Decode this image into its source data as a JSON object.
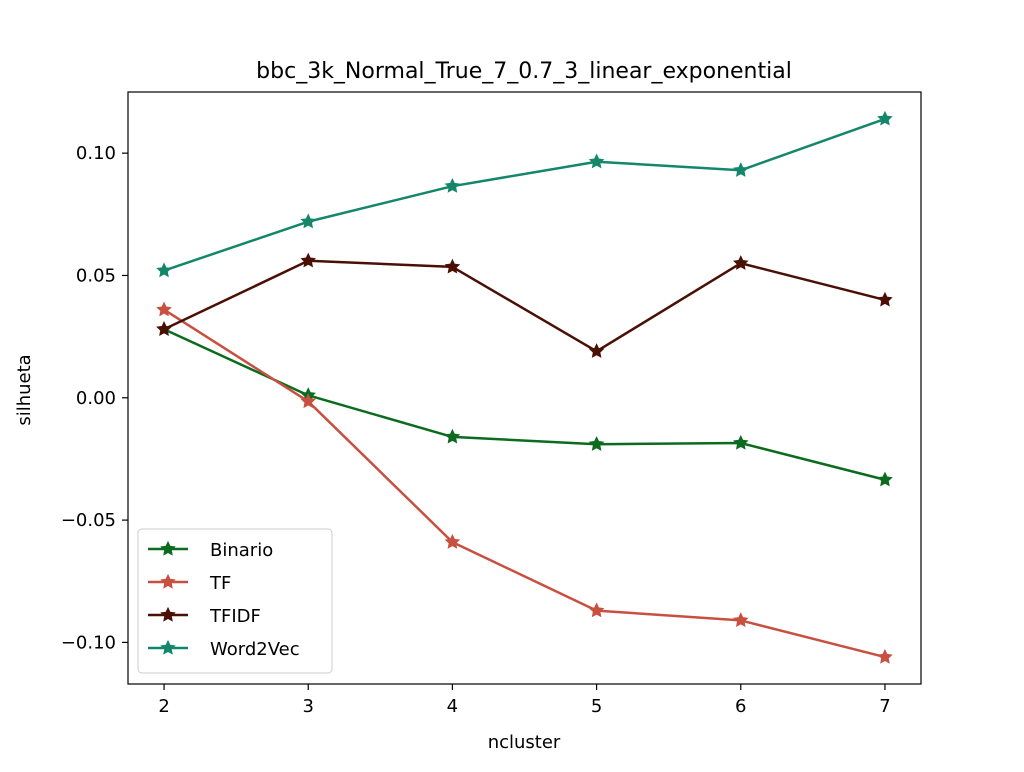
{
  "chart_data": {
    "type": "line",
    "title": "bbc_3k_Normal_True_7_0.7_3_linear_exponential",
    "xlabel": "ncluster",
    "ylabel": "silhueta",
    "x": [
      2,
      3,
      4,
      5,
      6,
      7
    ],
    "xticks": [
      "2",
      "3",
      "4",
      "5",
      "6",
      "7"
    ],
    "yticks": [
      0.1,
      0.05,
      0.0,
      -0.05,
      -0.1
    ],
    "ytick_labels": [
      "0.10",
      "0.05",
      "0.00",
      "−0.05",
      "−0.10"
    ],
    "xlim": [
      1.75,
      7.25
    ],
    "ylim": [
      -0.117,
      0.125
    ],
    "grid": false,
    "legend_position": "lower-left",
    "marker": "star",
    "series": [
      {
        "name": "Binario",
        "color": "#0b6b1e",
        "values": [
          0.028,
          0.001,
          -0.016,
          -0.019,
          -0.0185,
          -0.0335
        ]
      },
      {
        "name": "TF",
        "color": "#c85040",
        "values": [
          0.036,
          -0.0015,
          -0.059,
          -0.087,
          -0.091,
          -0.106
        ]
      },
      {
        "name": "TFIDF",
        "color": "#4a1005",
        "values": [
          0.028,
          0.056,
          0.0535,
          0.019,
          0.055,
          0.04
        ]
      },
      {
        "name": "Word2Vec",
        "color": "#14876a",
        "values": [
          0.052,
          0.072,
          0.0865,
          0.0965,
          0.093,
          0.114
        ]
      }
    ]
  }
}
